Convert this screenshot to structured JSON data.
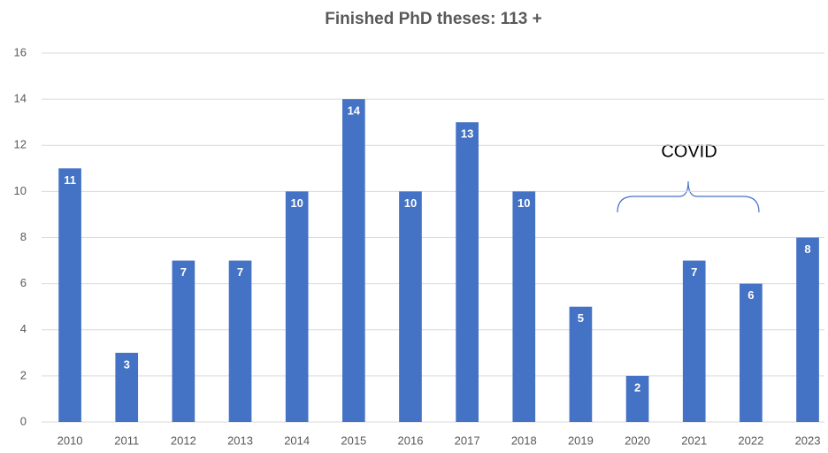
{
  "chart_data": {
    "type": "bar",
    "title": "Finished PhD theses: 113 +",
    "categories": [
      "2010",
      "2011",
      "2012",
      "2013",
      "2014",
      "2015",
      "2016",
      "2017",
      "2018",
      "2019",
      "2020",
      "2021",
      "2022",
      "2023"
    ],
    "values": [
      11,
      3,
      7,
      7,
      10,
      14,
      10,
      13,
      10,
      5,
      2,
      7,
      6,
      8
    ],
    "color": "#4472c4",
    "ylim": [
      0,
      16
    ],
    "yticks": [
      0,
      2,
      4,
      6,
      8,
      10,
      12,
      14,
      16
    ],
    "grid": true,
    "annotations": [
      "COVID"
    ]
  }
}
